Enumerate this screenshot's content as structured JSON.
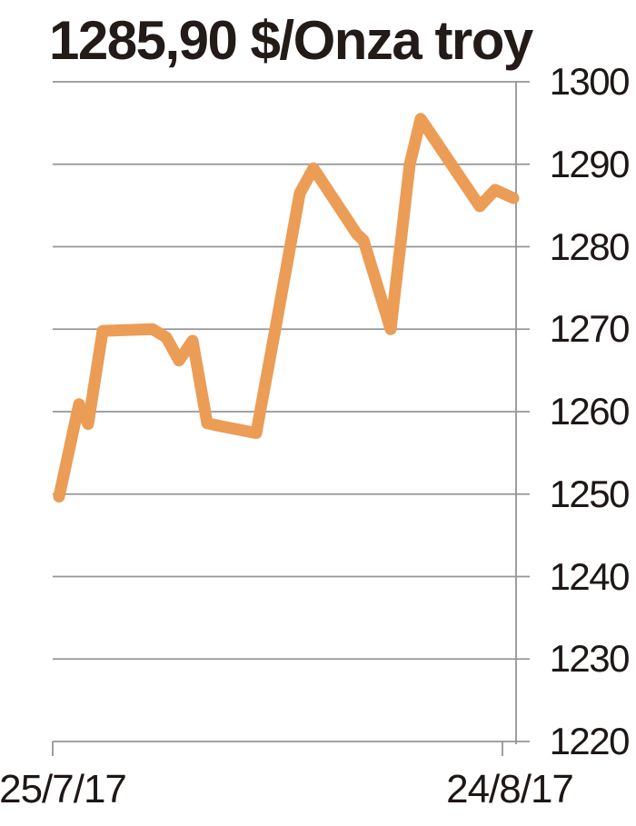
{
  "chart_data": {
    "type": "line",
    "title": "1285,90 $/Onza troy",
    "unit": "$/Onza troy",
    "last_price_label": "1285,90",
    "grid": true,
    "legend": "none",
    "line_color": "#EB9C55",
    "grid_color": "#94949b",
    "text_color": "#1d1715",
    "x_axis": {
      "start_label": "25/7/17",
      "end_label": "24/8/17"
    },
    "y_axis": {
      "min": 1220,
      "max": 1300,
      "ticks": [
        1300,
        1290,
        1280,
        1270,
        1260,
        1250,
        1240,
        1230,
        1220
      ]
    },
    "series": [
      {
        "name": "price",
        "points": [
          {
            "t": 0.0,
            "v": 1249.7
          },
          {
            "t": 0.044,
            "v": 1260.9
          },
          {
            "t": 0.064,
            "v": 1258.5
          },
          {
            "t": 0.096,
            "v": 1269.8
          },
          {
            "t": 0.206,
            "v": 1270.0
          },
          {
            "t": 0.236,
            "v": 1269.0
          },
          {
            "t": 0.264,
            "v": 1266.2
          },
          {
            "t": 0.294,
            "v": 1268.6
          },
          {
            "t": 0.326,
            "v": 1258.6
          },
          {
            "t": 0.35,
            "v": 1258.3
          },
          {
            "t": 0.434,
            "v": 1257.4
          },
          {
            "t": 0.476,
            "v": 1270.0
          },
          {
            "t": 0.53,
            "v": 1286.5
          },
          {
            "t": 0.56,
            "v": 1289.5
          },
          {
            "t": 0.656,
            "v": 1281.5
          },
          {
            "t": 0.67,
            "v": 1280.8
          },
          {
            "t": 0.73,
            "v": 1270.0
          },
          {
            "t": 0.772,
            "v": 1290.0
          },
          {
            "t": 0.796,
            "v": 1295.5
          },
          {
            "t": 0.926,
            "v": 1284.9
          },
          {
            "t": 0.96,
            "v": 1286.9
          },
          {
            "t": 1.0,
            "v": 1285.9
          }
        ]
      }
    ]
  }
}
